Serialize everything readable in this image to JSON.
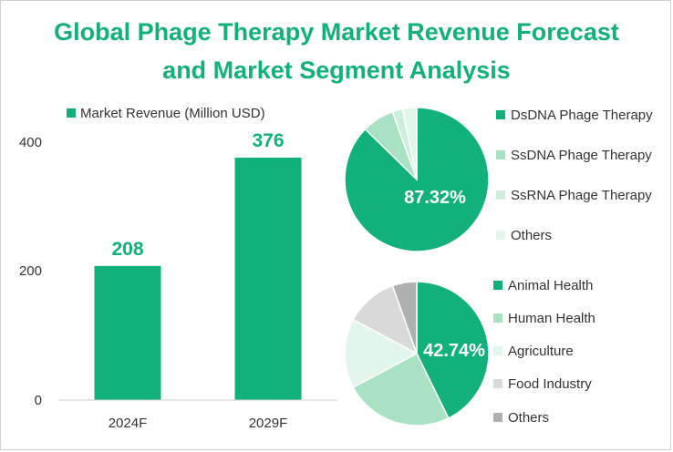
{
  "colors": {
    "accent": "#12b07a",
    "light_green": "#a8e2c3",
    "pale_green": "#cdeedb",
    "very_pale_green": "#e3f6ec",
    "light_gray": "#d9d9d9",
    "gray": "#b0b0b0"
  },
  "title_lines": [
    "Global Phage Therapy Market Revenue Forecast",
    "and Market Segment Analysis"
  ],
  "chart_data": [
    {
      "type": "bar",
      "categories": [
        "2024F",
        "2029F"
      ],
      "series": [
        {
          "name": "Market Revenue (Million USD)",
          "values": [
            208,
            376
          ],
          "color": "#12b07a"
        }
      ],
      "data_labels": [
        "208",
        "376"
      ],
      "ylim": [
        0,
        400
      ],
      "yticks": [
        0,
        200,
        400
      ],
      "ytick_labels": [
        "0",
        "200",
        "400"
      ],
      "legend_position": "top",
      "grid": false
    },
    {
      "type": "pie",
      "labels": [
        "DsDNA Phage Therapy",
        "SsDNA Phage Therapy",
        "SsRNA Phage Therapy",
        "Others"
      ],
      "values": [
        87.32,
        7.2,
        2.3,
        3.18
      ],
      "colors": [
        "#12b07a",
        "#a8e2c3",
        "#cdeedb",
        "#e3f6ec"
      ],
      "data_label": "87.32%",
      "legend_position": "right"
    },
    {
      "type": "pie",
      "labels": [
        "Animal Health",
        "Human Health",
        "Agriculture",
        "Food Industry",
        "Others"
      ],
      "values": [
        42.74,
        24.5,
        15.6,
        11.7,
        5.46
      ],
      "colors": [
        "#12b07a",
        "#a8e2c3",
        "#e3f6ec",
        "#d9d9d9",
        "#b0b0b0"
      ],
      "data_label": "42.74%",
      "legend_position": "right"
    }
  ]
}
